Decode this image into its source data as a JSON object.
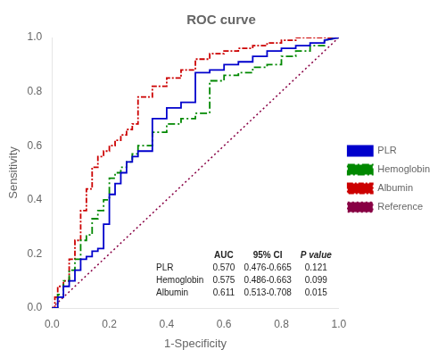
{
  "chart_data": {
    "type": "line",
    "title": "ROC curve",
    "xlabel": "1-Specificity",
    "ylabel": "Sensitivity",
    "xlim": [
      0.0,
      1.0
    ],
    "ylim": [
      0.0,
      1.0
    ],
    "xticks": [
      {
        "value": 0.0,
        "label": "0.0"
      },
      {
        "value": 0.2,
        "label": "0.2"
      },
      {
        "value": 0.4,
        "label": "0.4"
      },
      {
        "value": 0.6,
        "label": "0.6"
      },
      {
        "value": 0.8,
        "label": "0.8"
      },
      {
        "value": 1.0,
        "label": "1.0"
      }
    ],
    "yticks": [
      {
        "value": 0.0,
        "label": "0.0"
      },
      {
        "value": 0.2,
        "label": "0.2"
      },
      {
        "value": 0.4,
        "label": "0.4"
      },
      {
        "value": 0.6,
        "label": "0.6"
      },
      {
        "value": 0.8,
        "label": "0.8"
      },
      {
        "value": 1.0,
        "label": "1.0"
      }
    ],
    "grid": false,
    "legend": "right",
    "series": [
      {
        "name": "PLR",
        "color": "#0000CC",
        "line_style": "solid",
        "x": [
          0.0,
          0.02,
          0.02,
          0.04,
          0.04,
          0.06,
          0.06,
          0.08,
          0.08,
          0.1,
          0.1,
          0.12,
          0.12,
          0.14,
          0.14,
          0.16,
          0.16,
          0.18,
          0.18,
          0.2,
          0.2,
          0.22,
          0.22,
          0.24,
          0.24,
          0.26,
          0.26,
          0.28,
          0.28,
          0.3,
          0.3,
          0.35,
          0.35,
          0.4,
          0.4,
          0.45,
          0.45,
          0.5,
          0.5,
          0.55,
          0.55,
          0.6,
          0.6,
          0.65,
          0.65,
          0.7,
          0.7,
          0.75,
          0.75,
          0.8,
          0.8,
          0.85,
          0.85,
          0.9,
          0.9,
          0.95,
          0.95,
          1.0
        ],
        "values": [
          0.0,
          0.0,
          0.04,
          0.04,
          0.08,
          0.08,
          0.1,
          0.1,
          0.14,
          0.14,
          0.18,
          0.18,
          0.19,
          0.19,
          0.21,
          0.21,
          0.22,
          0.22,
          0.31,
          0.31,
          0.42,
          0.42,
          0.46,
          0.46,
          0.5,
          0.5,
          0.54,
          0.54,
          0.56,
          0.56,
          0.58,
          0.58,
          0.7,
          0.7,
          0.74,
          0.74,
          0.76,
          0.76,
          0.87,
          0.87,
          0.88,
          0.88,
          0.9,
          0.9,
          0.91,
          0.91,
          0.93,
          0.93,
          0.95,
          0.95,
          0.96,
          0.96,
          0.97,
          0.97,
          0.98,
          0.98,
          0.99,
          1.0
        ]
      },
      {
        "name": "Hemoglobin",
        "color": "#008800",
        "line_style": "dashdot",
        "x": [
          0.0,
          0.02,
          0.02,
          0.04,
          0.04,
          0.06,
          0.06,
          0.08,
          0.08,
          0.1,
          0.1,
          0.12,
          0.12,
          0.14,
          0.14,
          0.16,
          0.16,
          0.18,
          0.18,
          0.2,
          0.2,
          0.22,
          0.22,
          0.24,
          0.24,
          0.26,
          0.26,
          0.28,
          0.28,
          0.3,
          0.3,
          0.35,
          0.35,
          0.4,
          0.4,
          0.45,
          0.45,
          0.5,
          0.5,
          0.55,
          0.55,
          0.6,
          0.6,
          0.65,
          0.65,
          0.7,
          0.7,
          0.75,
          0.75,
          0.8,
          0.8,
          0.85,
          0.85,
          0.9,
          0.9,
          0.95,
          0.95,
          1.0
        ],
        "values": [
          0.0,
          0.0,
          0.05,
          0.05,
          0.1,
          0.1,
          0.14,
          0.14,
          0.18,
          0.18,
          0.25,
          0.25,
          0.27,
          0.27,
          0.33,
          0.33,
          0.36,
          0.36,
          0.4,
          0.4,
          0.48,
          0.48,
          0.5,
          0.5,
          0.52,
          0.52,
          0.54,
          0.54,
          0.57,
          0.57,
          0.6,
          0.6,
          0.65,
          0.65,
          0.68,
          0.68,
          0.7,
          0.7,
          0.72,
          0.72,
          0.84,
          0.84,
          0.86,
          0.86,
          0.87,
          0.87,
          0.89,
          0.89,
          0.9,
          0.9,
          0.93,
          0.93,
          0.95,
          0.95,
          0.97,
          0.97,
          0.99,
          1.0
        ]
      },
      {
        "name": "Albumin",
        "color": "#CC0000",
        "line_style": "dense_dashdot",
        "x": [
          0.0,
          0.01,
          0.01,
          0.02,
          0.02,
          0.04,
          0.04,
          0.06,
          0.06,
          0.08,
          0.08,
          0.1,
          0.1,
          0.12,
          0.12,
          0.14,
          0.14,
          0.16,
          0.16,
          0.18,
          0.18,
          0.2,
          0.2,
          0.22,
          0.22,
          0.24,
          0.24,
          0.26,
          0.26,
          0.28,
          0.28,
          0.3,
          0.3,
          0.35,
          0.35,
          0.4,
          0.4,
          0.45,
          0.45,
          0.5,
          0.5,
          0.55,
          0.55,
          0.6,
          0.6,
          0.65,
          0.65,
          0.7,
          0.7,
          0.75,
          0.75,
          0.8,
          0.8,
          0.85,
          0.85,
          0.9,
          0.9,
          0.95,
          0.95,
          1.0
        ],
        "values": [
          0.0,
          0.0,
          0.04,
          0.04,
          0.08,
          0.08,
          0.1,
          0.1,
          0.18,
          0.18,
          0.25,
          0.25,
          0.36,
          0.36,
          0.44,
          0.44,
          0.52,
          0.52,
          0.56,
          0.56,
          0.58,
          0.58,
          0.6,
          0.6,
          0.62,
          0.62,
          0.64,
          0.64,
          0.66,
          0.66,
          0.68,
          0.68,
          0.78,
          0.78,
          0.82,
          0.82,
          0.85,
          0.85,
          0.88,
          0.88,
          0.92,
          0.92,
          0.94,
          0.94,
          0.95,
          0.95,
          0.96,
          0.96,
          0.97,
          0.97,
          0.98,
          0.98,
          0.99,
          0.99,
          1.0,
          1.0,
          1.0,
          1.0,
          1.0,
          1.0
        ]
      },
      {
        "name": "Reference",
        "color": "#880044",
        "line_style": "dotted",
        "x": [
          0,
          1
        ],
        "values": [
          0,
          1
        ]
      }
    ],
    "annotations": {
      "header": [
        "AUC",
        "95% CI",
        "P value"
      ],
      "rows": [
        [
          "PLR",
          "0.570",
          "0.476-0.665",
          "0.121"
        ],
        [
          "Hemoglobin",
          "0.575",
          "0.486-0.663",
          "0.099"
        ],
        [
          "Albumin",
          "0.611",
          "0.513-0.708",
          "0.015"
        ]
      ]
    }
  }
}
